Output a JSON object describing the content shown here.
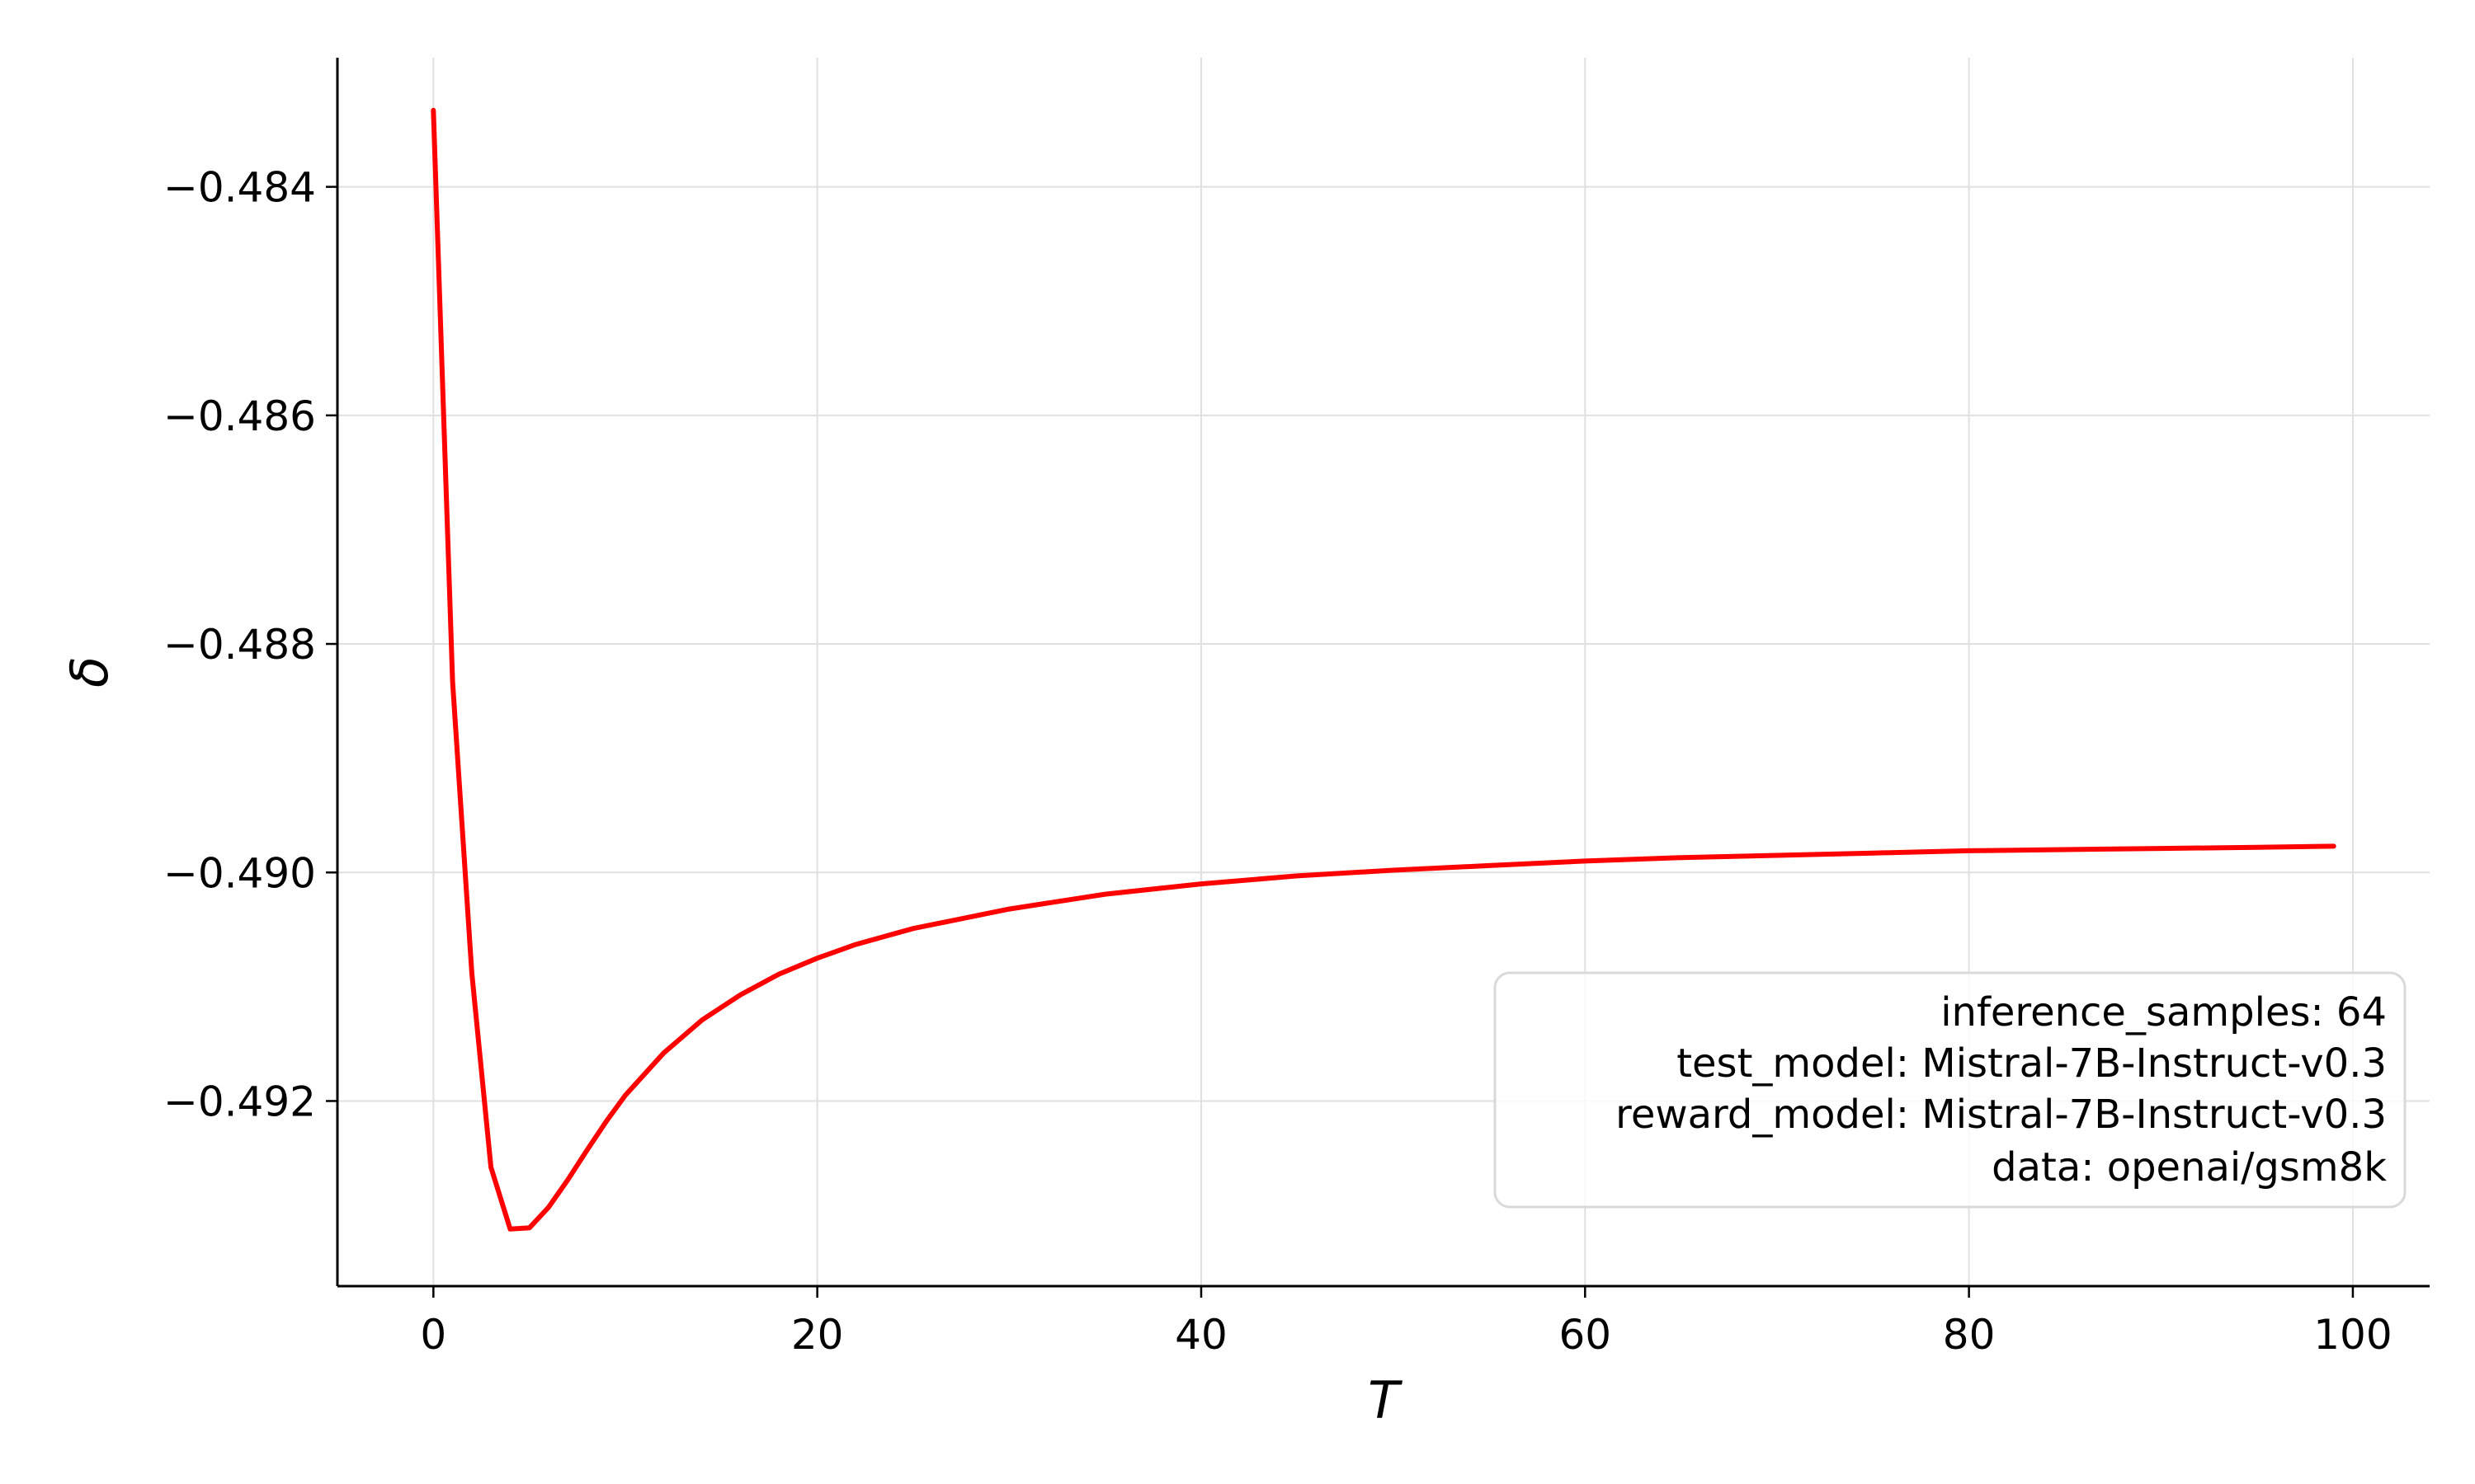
{
  "chart_data": {
    "type": "line",
    "xlabel": "T",
    "ylabel": "δ",
    "xlim": [
      -5,
      104
    ],
    "ylim": [
      -0.49362,
      -0.48287
    ],
    "xticks": [
      0,
      20,
      40,
      60,
      80,
      100
    ],
    "xtick_labels": [
      "0",
      "20",
      "40",
      "60",
      "80",
      "100"
    ],
    "yticks": [
      -0.484,
      -0.486,
      -0.488,
      -0.49,
      -0.492
    ],
    "ytick_labels": [
      "−0.484",
      "−0.486",
      "−0.488",
      "−0.490",
      "−0.492"
    ],
    "grid": true,
    "legend_placement": "lower-right",
    "colors": {
      "line": "#ff0000",
      "grid": "#e0e0e0",
      "axis": "#000000",
      "legend_border": "#d9d9d9"
    },
    "series": [
      {
        "x": [
          0,
          1,
          2,
          3,
          4,
          5,
          6,
          7,
          8,
          9,
          10,
          12,
          14,
          16,
          18,
          20,
          22,
          25,
          30,
          35,
          40,
          45,
          50,
          55,
          60,
          65,
          70,
          75,
          80,
          85,
          90,
          95,
          99
        ],
        "y": [
          -0.48333,
          -0.48833,
          -0.49088,
          -0.49258,
          -0.49312,
          -0.49311,
          -0.49293,
          -0.49269,
          -0.49243,
          -0.49218,
          -0.49195,
          -0.49158,
          -0.49129,
          -0.49107,
          -0.49089,
          -0.49075,
          -0.49063,
          -0.49049,
          -0.49032,
          -0.49019,
          -0.4901,
          -0.49003,
          -0.48998,
          -0.48994,
          -0.4899,
          -0.48987,
          -0.48985,
          -0.48983,
          -0.48981,
          -0.4898,
          -0.48979,
          -0.48978,
          -0.48977
        ]
      }
    ],
    "legend_text": [
      "inference_samples: 64",
      "test_model: Mistral-7B-Instruct-v0.3",
      "reward_model: Mistral-7B-Instruct-v0.3",
      "data: openai/gsm8k"
    ]
  }
}
